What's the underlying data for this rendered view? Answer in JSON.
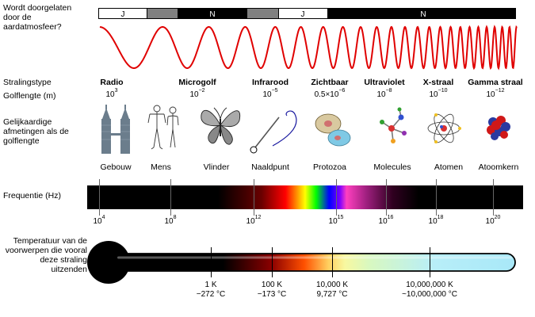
{
  "labels": {
    "atmosphere": "Wordt doorgelaten door de aardatmosfeer?",
    "radiation_type": "Stralingstype",
    "wavelength": "Golflengte (m)",
    "scale": "Gelijkaardige afmetingen als de golflengte",
    "frequency": "Frequentie (Hz)",
    "temperature": "Temperatuur van de voorwerpen die vooral deze straling uitzenden"
  },
  "atmosphere_bar": [
    {
      "label": "J",
      "transmitted": true
    },
    {
      "label": "",
      "transmitted": "partial"
    },
    {
      "label": "N",
      "transmitted": false
    },
    {
      "label": "",
      "transmitted": "partial"
    },
    {
      "label": "J",
      "transmitted": true
    },
    {
      "label": "N",
      "transmitted": false
    }
  ],
  "bands": [
    {
      "name": "Radio",
      "wl_base": "10",
      "wl_exp": "3"
    },
    {
      "name": "Microgolf",
      "wl_base": "10",
      "wl_exp": "−2"
    },
    {
      "name": "Infrarood",
      "wl_base": "10",
      "wl_exp": "−5"
    },
    {
      "name": "Zichtbaar",
      "wl_base": "0.5×10",
      "wl_exp": "−6"
    },
    {
      "name": "Ultraviolet",
      "wl_base": "10",
      "wl_exp": "−8"
    },
    {
      "name": "X-straal",
      "wl_base": "10",
      "wl_exp": "−10"
    },
    {
      "name": "Gamma straal",
      "wl_base": "10",
      "wl_exp": "−12"
    }
  ],
  "objects": [
    {
      "label": "Gebouw",
      "icon": "building-icon"
    },
    {
      "label": "Mens",
      "icon": "humans-icon"
    },
    {
      "label": "Vlinder",
      "icon": "butterfly-icon"
    },
    {
      "label": "Naaldpunt",
      "icon": "needle-icon"
    },
    {
      "label": "Protozoa",
      "icon": "protozoa-icon"
    },
    {
      "label": "Molecules",
      "icon": "molecule-icon"
    },
    {
      "label": "Atomen",
      "icon": "atom-icon"
    },
    {
      "label": "Atoomkern",
      "icon": "nucleus-icon"
    }
  ],
  "frequency_ticks": [
    {
      "base": "10",
      "exp": "4"
    },
    {
      "base": "10",
      "exp": "8"
    },
    {
      "base": "10",
      "exp": "12"
    },
    {
      "base": "10",
      "exp": "15"
    },
    {
      "base": "10",
      "exp": "16"
    },
    {
      "base": "10",
      "exp": "18"
    },
    {
      "base": "10",
      "exp": "20"
    }
  ],
  "temperature_ticks": [
    {
      "kelvin": "1 K",
      "celsius": "−272 °C"
    },
    {
      "kelvin": "100 K",
      "celsius": "−173 °C"
    },
    {
      "kelvin": "10,000 K",
      "celsius": "9,727 °C"
    },
    {
      "kelvin": "10,000,000 K",
      "celsius": "~10,000,000 °C"
    }
  ],
  "colors": {
    "wave": "#e00000",
    "bar_dark": "#000000",
    "bar_partial": "#808080",
    "thermo_hot": "#a8e8f8"
  }
}
